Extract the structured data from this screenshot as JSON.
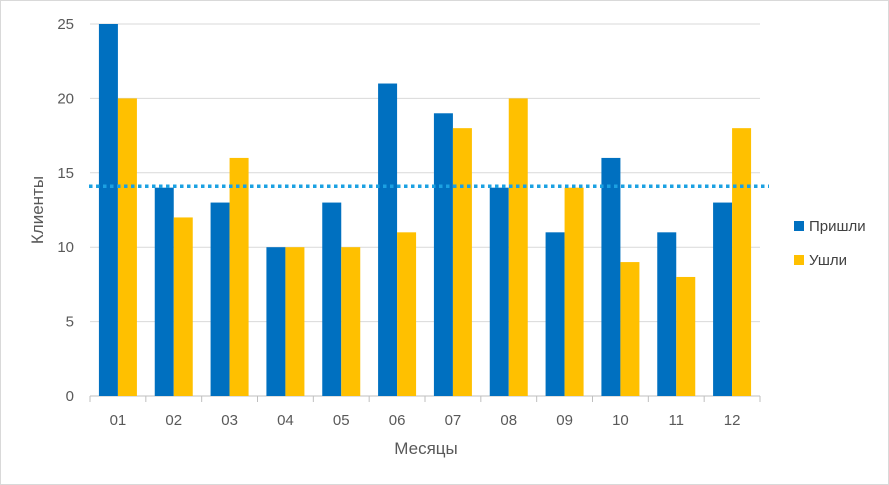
{
  "chart_data": {
    "type": "bar",
    "categories": [
      "01",
      "02",
      "03",
      "04",
      "05",
      "06",
      "07",
      "08",
      "09",
      "10",
      "11",
      "12"
    ],
    "series": [
      {
        "name": "Пришли",
        "color": "#0070C0",
        "values": [
          25,
          14,
          13,
          10,
          13,
          21,
          19,
          14,
          11,
          16,
          11,
          13
        ]
      },
      {
        "name": "Ушли",
        "color": "#FFC000",
        "values": [
          20,
          12,
          16,
          10,
          10,
          11,
          18,
          20,
          14,
          9,
          8,
          18
        ]
      }
    ],
    "xlabel": "Месяцы",
    "ylabel": "Клиенты",
    "ylim": [
      0,
      25
    ],
    "yticks": [
      "0",
      "5",
      "10",
      "15",
      "20",
      "25"
    ],
    "grid": true,
    "legend": "right",
    "reference_line": {
      "value": 14.1,
      "color": "#1BA1E2",
      "style": "dotted"
    }
  }
}
